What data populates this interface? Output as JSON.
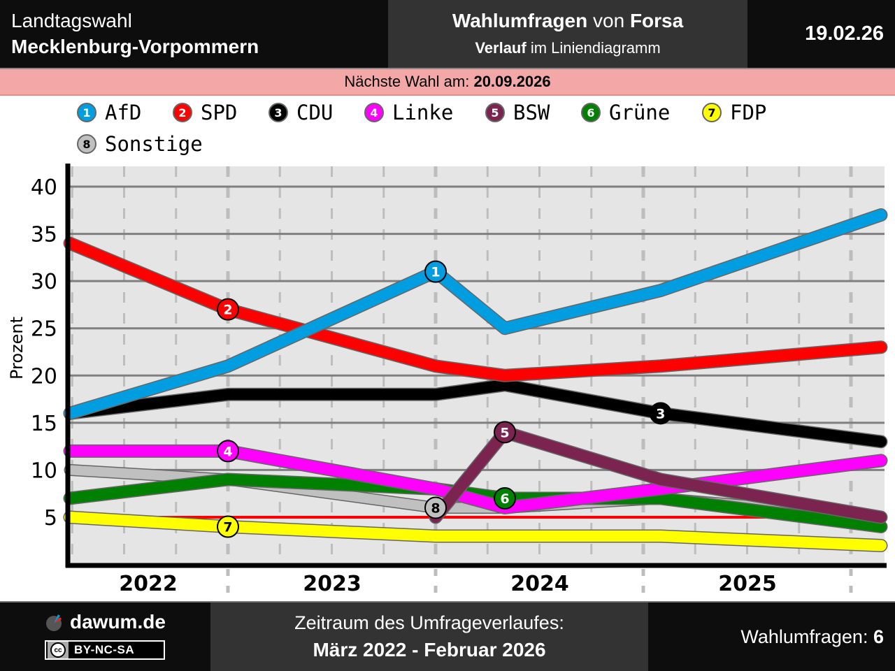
{
  "header": {
    "title_line1": "Landtagswahl",
    "title_line2": "Mecklenburg-Vorpommern",
    "center_bold1": "Wahlumfragen",
    "center_mid": " von ",
    "center_bold2": "Forsa",
    "center_sub_bold": "Verlauf",
    "center_sub_rest": " im Liniendiagramm",
    "date": "19.02.26"
  },
  "next_election": {
    "label": "Nächste Wahl am: ",
    "date": "20.09.2026"
  },
  "colors": {
    "AfD": "#009ee0",
    "SPD": "#ff0000",
    "CDU": "#000000",
    "Linke": "#ff00ff",
    "BSW": "#7b2450",
    "Grüne": "#008000",
    "FDP": "#ffff00",
    "Sonstige": "#c0c0c0",
    "threshold": "#ff0000",
    "plot_bg": "#e5e5e5"
  },
  "chart_data": {
    "type": "line",
    "title": "Wahlumfragen von Forsa – Verlauf im Liniendiagramm",
    "xlabel": "",
    "ylabel": "Prozent",
    "ylim": [
      0,
      42
    ],
    "yticks": [
      5,
      10,
      15,
      20,
      25,
      30,
      35,
      40
    ],
    "xticks": [
      "2022",
      "2023",
      "2024",
      "2025"
    ],
    "grid": true,
    "legend_position": "top",
    "threshold": 5,
    "x": [
      "2022-03",
      "2023-01",
      "2024-01",
      "2024-05",
      "2025-02",
      "2026-02"
    ],
    "series": [
      {
        "name": "AfD",
        "number": "1",
        "values": [
          16,
          21,
          31,
          25,
          29,
          37
        ],
        "label_index": 2
      },
      {
        "name": "SPD",
        "number": "2",
        "values": [
          34,
          27,
          21,
          20,
          21,
          23
        ],
        "label_index": 1
      },
      {
        "name": "CDU",
        "number": "3",
        "values": [
          16,
          18,
          18,
          19,
          16,
          13
        ],
        "label_index": 4
      },
      {
        "name": "Linke",
        "number": "4",
        "values": [
          12,
          12,
          8,
          6,
          8,
          11
        ],
        "label_index": 1
      },
      {
        "name": "BSW",
        "number": "5",
        "values": [
          null,
          null,
          5,
          14,
          9,
          5
        ],
        "label_index": 3
      },
      {
        "name": "Grüne",
        "number": "6",
        "values": [
          7,
          9,
          8,
          7,
          7,
          4
        ],
        "label_index": 3
      },
      {
        "name": "FDP",
        "number": "7",
        "values": [
          5,
          4,
          3,
          3,
          3,
          2
        ],
        "label_index": 1
      },
      {
        "name": "Sonstige",
        "number": "8",
        "values": [
          10,
          9,
          6,
          6,
          7,
          5
        ],
        "label_index": 2
      }
    ]
  },
  "legend": [
    {
      "number": "1",
      "name": "AfD"
    },
    {
      "number": "2",
      "name": "SPD"
    },
    {
      "number": "3",
      "name": "CDU"
    },
    {
      "number": "4",
      "name": "Linke"
    },
    {
      "number": "5",
      "name": "BSW"
    },
    {
      "number": "6",
      "name": "Grüne"
    },
    {
      "number": "7",
      "name": "FDP"
    },
    {
      "number": "8",
      "name": "Sonstige"
    }
  ],
  "footer": {
    "logo_text": "dawum.de",
    "license": "BY-NC-SA",
    "license_cc": "cc",
    "period_label": "Zeitraum des Umfrageverlaufes:",
    "period_value": "März 2022 - Februar 2026",
    "count_label": "Wahlumfragen: ",
    "count_value": "6"
  }
}
